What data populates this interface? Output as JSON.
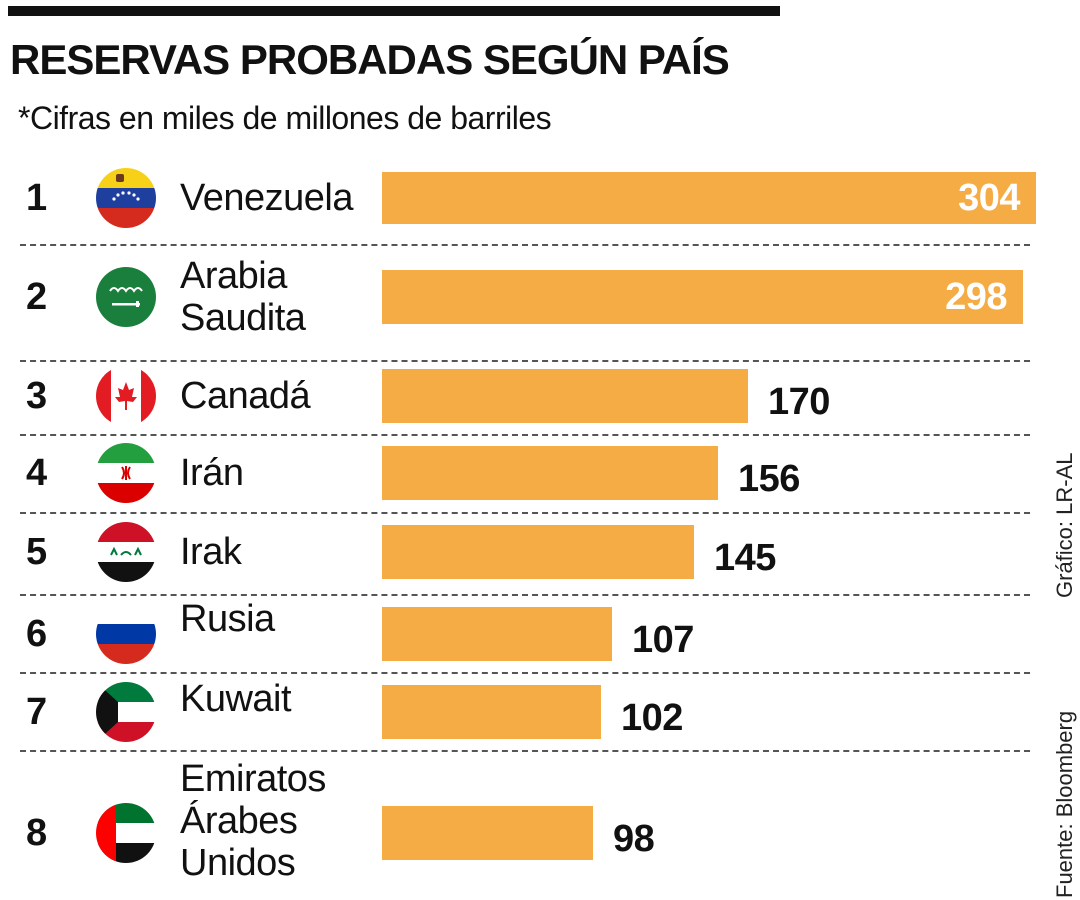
{
  "header": {
    "title": "RESERVAS PROBADAS SEGÚN PAÍS",
    "subtitle": "*Cifras en miles de millones de barriles"
  },
  "credits": {
    "graphic": "Gráfico: LR-AL",
    "source": "Fuente: Bloomberg"
  },
  "colors": {
    "bar": "#f5ac45",
    "text": "#111111",
    "inside_label": "#ffffff"
  },
  "chart_data": {
    "type": "bar",
    "orientation": "horizontal",
    "title": "RESERVAS PROBADAS SEGÚN PAÍS",
    "subtitle": "*Cifras en miles de millones de barriles",
    "xlim": [
      0,
      304
    ],
    "grid": false,
    "rows": [
      {
        "rank": "1",
        "country": [
          "Venezuela"
        ],
        "value": 304,
        "flag": "venezuela-flag-icon"
      },
      {
        "rank": "2",
        "country": [
          "Arabia",
          "Saudita"
        ],
        "value": 298,
        "flag": "saudi-arabia-flag-icon"
      },
      {
        "rank": "3",
        "country": [
          "Canadá"
        ],
        "value": 170,
        "flag": "canada-flag-icon"
      },
      {
        "rank": "4",
        "country": [
          "Irán"
        ],
        "value": 156,
        "flag": "iran-flag-icon"
      },
      {
        "rank": "5",
        "country": [
          "Irak"
        ],
        "value": 145,
        "flag": "iraq-flag-icon"
      },
      {
        "rank": "6",
        "country": [
          "Rusia"
        ],
        "value": 107,
        "flag": "russia-flag-icon"
      },
      {
        "rank": "7",
        "country": [
          "Kuwait"
        ],
        "value": 102,
        "flag": "kuwait-flag-icon"
      },
      {
        "rank": "8",
        "country": [
          "Emiratos",
          "Árabes",
          "Unidos"
        ],
        "value": 98,
        "flag": "uae-flag-icon"
      }
    ]
  }
}
